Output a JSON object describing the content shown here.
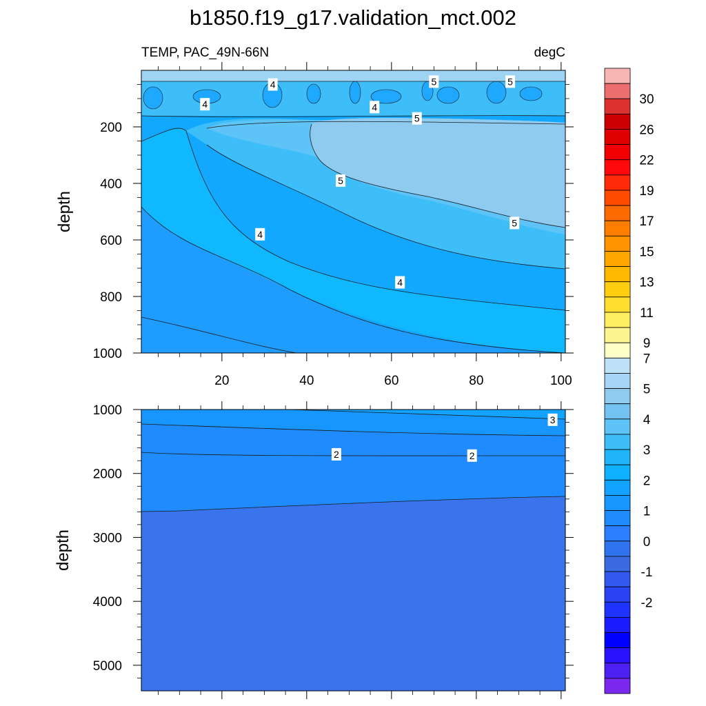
{
  "figure": {
    "title": "b1850.f19_g17.validation_mct.002",
    "left_label": "TEMP, PAC_49N-66N",
    "right_label": "degC"
  },
  "chart_data": [
    {
      "type": "heatmap",
      "panel": "upper",
      "ylabel": "depth",
      "xlabel": "",
      "x_ticks": [
        "20",
        "40",
        "60",
        "80",
        "100"
      ],
      "y_ticks": [
        "200",
        "400",
        "600",
        "800",
        "1000"
      ],
      "xlim": [
        1,
        101
      ],
      "ylim": [
        1000,
        0
      ],
      "contour_labels": [
        {
          "text": "4",
          "x": 32,
          "y": 50
        },
        {
          "text": "5",
          "x": 70,
          "y": 40
        },
        {
          "text": "5",
          "x": 88,
          "y": 40
        },
        {
          "text": "4",
          "x": 16,
          "y": 120
        },
        {
          "text": "4",
          "x": 56,
          "y": 130
        },
        {
          "text": "5",
          "x": 66,
          "y": 170
        },
        {
          "text": "5",
          "x": 48,
          "y": 390
        },
        {
          "text": "5",
          "x": 89,
          "y": 540
        },
        {
          "text": "4",
          "x": 29,
          "y": 580
        },
        {
          "text": "4",
          "x": 62,
          "y": 750
        }
      ]
    },
    {
      "type": "heatmap",
      "panel": "lower",
      "ylabel": "depth",
      "xlabel": "",
      "x_ticks": [],
      "y_ticks": [
        "1000",
        "2000",
        "3000",
        "4000",
        "5000"
      ],
      "xlim": [
        1,
        101
      ],
      "ylim": [
        5400,
        1000
      ],
      "contour_labels": [
        {
          "text": "3",
          "x": 98,
          "y": 1160
        },
        {
          "text": "2",
          "x": 47,
          "y": 1700
        },
        {
          "text": "2",
          "x": 79,
          "y": 1720
        }
      ]
    }
  ],
  "colorbar": {
    "labels": [
      "30",
      "26",
      "22",
      "19",
      "17",
      "15",
      "13",
      "11",
      "9",
      "7",
      "5",
      "4",
      "3",
      "2",
      "1",
      "0",
      "-1",
      "-2"
    ],
    "colors": [
      "#f9b4b4",
      "#ec6e6e",
      "#dc3232",
      "#cc0000",
      "#e00000",
      "#f00000",
      "#ff0a0a",
      "#ff2a0a",
      "#ff4b00",
      "#ff6a00",
      "#ff7e00",
      "#ff9400",
      "#ffa600",
      "#ffb900",
      "#ffcc10",
      "#ffde30",
      "#ffee60",
      "#fff590",
      "#ffffc8",
      "#bde1f6",
      "#a5d6f5",
      "#8ecbef",
      "#73c2f1",
      "#5ec3f7",
      "#3ebef9",
      "#1fb6fa",
      "#0fb0ff",
      "#12a2ff",
      "#1796ff",
      "#1f8bff",
      "#2b7fff",
      "#2f73ee",
      "#3a6be2",
      "#3158f0",
      "#2a44f4",
      "#1f33ff",
      "#1a1eff",
      "#0000ff",
      "#2a12ff",
      "#4d1ff3",
      "#7c27ee"
    ]
  }
}
